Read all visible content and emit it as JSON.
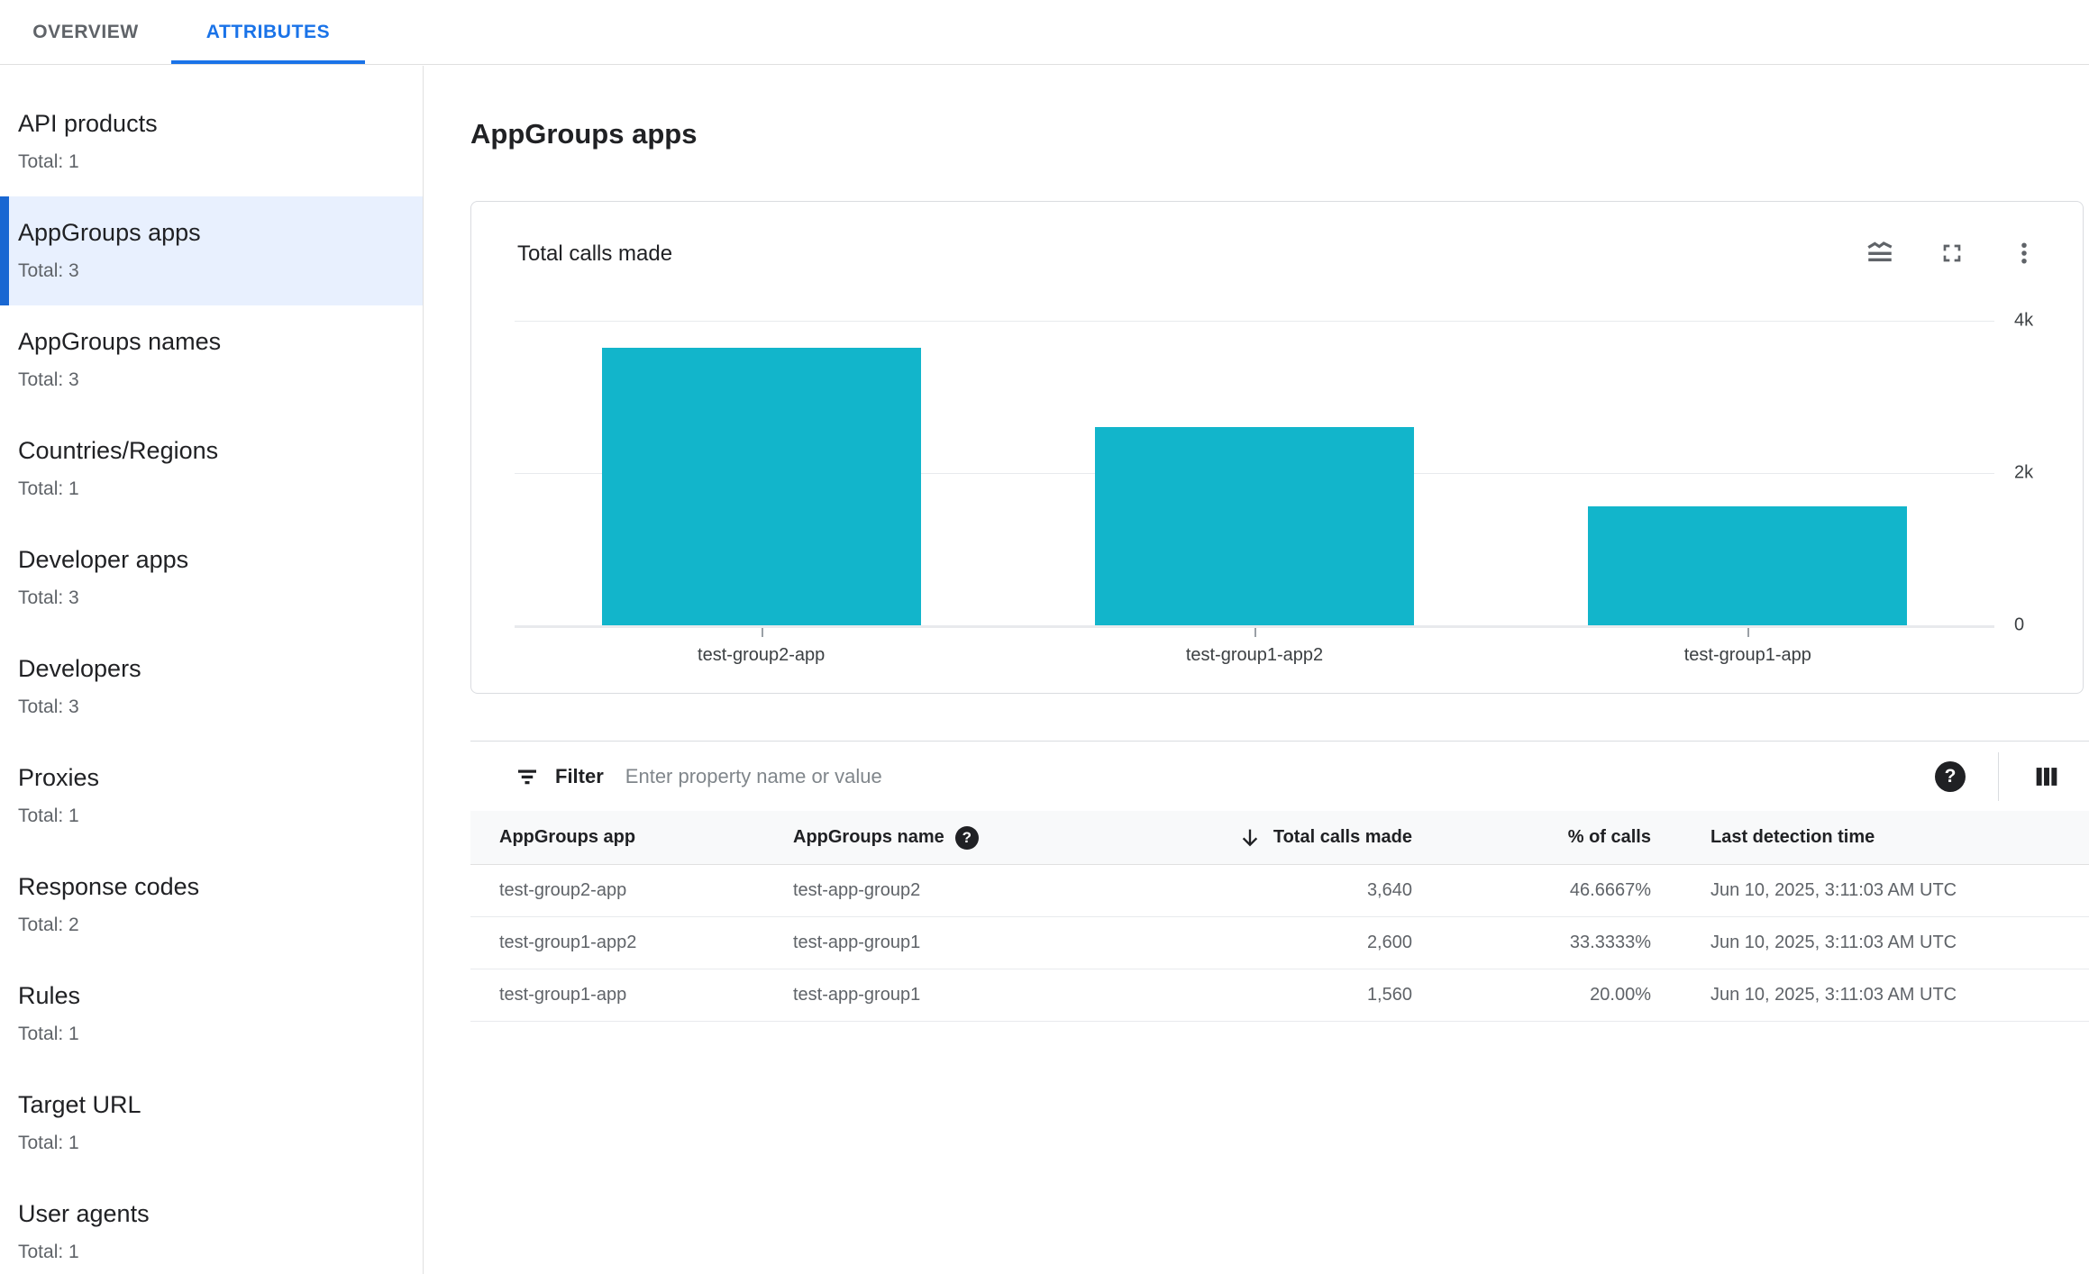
{
  "tabs": [
    {
      "label": "OVERVIEW",
      "active": false
    },
    {
      "label": "ATTRIBUTES",
      "active": true
    }
  ],
  "sidebar": {
    "items": [
      {
        "label": "API products",
        "total": "Total: 1",
        "selected": false
      },
      {
        "label": "AppGroups apps",
        "total": "Total: 3",
        "selected": true
      },
      {
        "label": "AppGroups names",
        "total": "Total: 3",
        "selected": false
      },
      {
        "label": "Countries/Regions",
        "total": "Total: 1",
        "selected": false
      },
      {
        "label": "Developer apps",
        "total": "Total: 3",
        "selected": false
      },
      {
        "label": "Developers",
        "total": "Total: 3",
        "selected": false
      },
      {
        "label": "Proxies",
        "total": "Total: 1",
        "selected": false
      },
      {
        "label": "Response codes",
        "total": "Total: 2",
        "selected": false
      },
      {
        "label": "Rules",
        "total": "Total: 1",
        "selected": false
      },
      {
        "label": "Target URL",
        "total": "Total: 1",
        "selected": false
      },
      {
        "label": "User agents",
        "total": "Total: 1",
        "selected": false
      }
    ]
  },
  "main": {
    "page_title": "AppGroups apps",
    "card": {
      "title": "Total calls made",
      "icons": [
        "area-chart-icon",
        "fullscreen-icon",
        "more-vert-icon"
      ]
    },
    "filter": {
      "label": "Filter",
      "placeholder": "Enter property name or value",
      "value": ""
    },
    "table": {
      "columns": [
        {
          "label": "AppGroups app",
          "align": "left"
        },
        {
          "label": "AppGroups name",
          "align": "left",
          "help": true
        },
        {
          "label": "Total calls made",
          "align": "right",
          "sorted": "desc"
        },
        {
          "label": "% of calls",
          "align": "right"
        },
        {
          "label": "Last detection time",
          "align": "left"
        }
      ],
      "rows": [
        {
          "app": "test-group2-app",
          "name": "test-app-group2",
          "calls": "3,640",
          "pct": "46.6667%",
          "time": "Jun 10, 2025, 3:11:03 AM UTC"
        },
        {
          "app": "test-group1-app2",
          "name": "test-app-group1",
          "calls": "2,600",
          "pct": "33.3333%",
          "time": "Jun 10, 2025, 3:11:03 AM UTC"
        },
        {
          "app": "test-group1-app",
          "name": "test-app-group1",
          "calls": "1,560",
          "pct": "20.00%",
          "time": "Jun 10, 2025, 3:11:03 AM UTC"
        }
      ]
    }
  },
  "chart_data": {
    "type": "bar",
    "title": "Total calls made",
    "categories": [
      "test-group2-app",
      "test-group1-app2",
      "test-group1-app"
    ],
    "values": [
      3640,
      2600,
      1560
    ],
    "xlabel": "",
    "ylabel": "",
    "ylim": [
      0,
      4000
    ],
    "yticks": [
      {
        "value": 0,
        "label": "0"
      },
      {
        "value": 2000,
        "label": "2k"
      },
      {
        "value": 4000,
        "label": "4k"
      }
    ],
    "grid": true,
    "legend": false,
    "bar_color": "#12b5cb"
  },
  "colors": {
    "accent": "#1a73e8",
    "selected_left_bar": "#1967d2",
    "selected_bg": "#e8f0fe",
    "bar": "#12b5cb",
    "text_primary": "#202124",
    "text_secondary": "#5f6368",
    "border": "#dadce0"
  }
}
